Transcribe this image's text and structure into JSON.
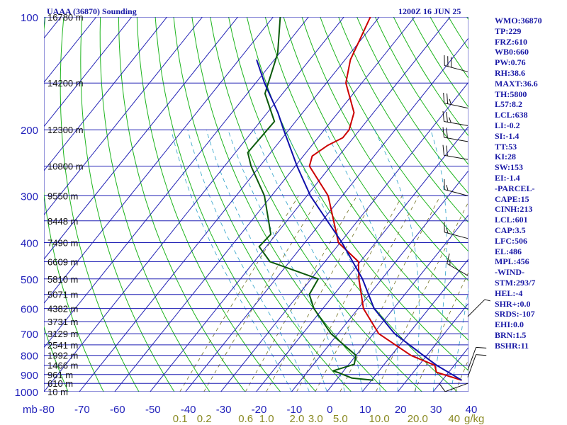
{
  "header": {
    "title": "UAAA (36870) Sounding",
    "datetime": "1200Z 16 JUN 25"
  },
  "stats": [
    "WMO:36870",
    "TP:229",
    "FRZ:610",
    "WB0:660",
    "PW:0.76",
    "RH:38.6",
    "MAXT:36.6",
    "TH:5800",
    "L57:8.2",
    "LCL:638",
    "LI:-0.2",
    "SI:-1.4",
    "TT:53",
    "KI:28",
    "SW:153",
    "EI:-1.4",
    "-PARCEL-",
    "CAPE:15",
    "CINH:213",
    "LCL:601",
    "CAP:3.5",
    "LFC:506",
    "EL:486",
    "MPL:456",
    "-WIND-",
    "STM:293/7",
    "HEL:-4",
    "SHR+:0.0",
    "SRDS:-107",
    "EHI:0.0",
    "BRN:1.5",
    "BSHR:11"
  ],
  "colors": {
    "isobar": "#1f1fb4",
    "isotherm": "#1f1fb4",
    "dry_adiabat": "#1db41d",
    "moist_adiabat": "#2aa0c8",
    "mixing_ratio": "#707020",
    "temperature": "#cc0000",
    "dewpoint": "#0b5a0b",
    "parcel": "#1010aa",
    "wind_barb": "#111111",
    "stats_text": "#1a1aa6"
  },
  "chart_data": {
    "type": "skew-t log-p",
    "title": "UAAA (36870) Sounding",
    "xlabel": "",
    "ylabel": "mb",
    "x_unit": "°C",
    "y_scale": "log",
    "xlim": [
      -80,
      40
    ],
    "ylim": [
      1000,
      100
    ],
    "pressure_levels": [
      100,
      200,
      300,
      400,
      500,
      600,
      700,
      800,
      900,
      1000
    ],
    "temperature_ticks": [
      -80,
      -70,
      -60,
      -50,
      -40,
      -30,
      -20,
      -10,
      0,
      10,
      20,
      30,
      40
    ],
    "isobar_levels": [
      100,
      150,
      200,
      250,
      300,
      350,
      400,
      450,
      500,
      550,
      600,
      650,
      700,
      750,
      800,
      850,
      900,
      950,
      1000
    ],
    "mixing_ratio_labels": [
      "0.1",
      "0.2",
      "0.6",
      "1.0",
      "2.0",
      "3.0",
      "5.0",
      "10.0",
      "20.0",
      "40"
    ],
    "mixing_ratio_unit": "g/kg",
    "mixing_ratio_values": [
      0.1,
      0.2,
      0.6,
      1.0,
      2.0,
      3.0,
      5.0,
      10.0,
      20.0,
      40.0
    ],
    "height_labels": [
      {
        "p": 100,
        "text": "16780 m"
      },
      {
        "p": 150,
        "text": "14200 m"
      },
      {
        "p": 200,
        "text": "12300 m"
      },
      {
        "p": 250,
        "text": "10800 m"
      },
      {
        "p": 300,
        "text": "9550 m"
      },
      {
        "p": 350,
        "text": "8448 m"
      },
      {
        "p": 400,
        "text": "7490 m"
      },
      {
        "p": 450,
        "text": "6609 m"
      },
      {
        "p": 500,
        "text": "5810 m"
      },
      {
        "p": 550,
        "text": "5071 m"
      },
      {
        "p": 600,
        "text": "4382 m"
      },
      {
        "p": 650,
        "text": "3731 m"
      },
      {
        "p": 700,
        "text": "3129 m"
      },
      {
        "p": 750,
        "text": "2541 m"
      },
      {
        "p": 800,
        "text": "1992 m"
      },
      {
        "p": 850,
        "text": "1466 m"
      },
      {
        "p": 900,
        "text": "961 m"
      },
      {
        "p": 950,
        "text": "610 m"
      },
      {
        "p": 1000,
        "text": "10 m"
      }
    ],
    "series": [
      {
        "name": "",
        "kind": "temperature",
        "points": [
          [
            932,
            35.5
          ],
          [
            887,
            26.5
          ],
          [
            850,
            24.5
          ],
          [
            800,
            15.5
          ],
          [
            700,
            1.5
          ],
          [
            600,
            -8.5
          ],
          [
            500,
            -16.5
          ],
          [
            450,
            -20.5
          ],
          [
            400,
            -30.5
          ],
          [
            300,
            -44.0
          ],
          [
            250,
            -56.0
          ],
          [
            235,
            -57.5
          ],
          [
            220,
            -55.5
          ],
          [
            210,
            -53.0
          ],
          [
            200,
            -53.0
          ],
          [
            180,
            -55.5
          ],
          [
            150,
            -64.5
          ],
          [
            130,
            -68.5
          ],
          [
            100,
            -72.5
          ]
        ]
      },
      {
        "name": "",
        "kind": "dewpoint",
        "points": [
          [
            932,
            10.5
          ],
          [
            920,
            4.0
          ],
          [
            890,
            -1.0
          ],
          [
            880,
            -3.0
          ],
          [
            845,
            1.5
          ],
          [
            800,
            0.0
          ],
          [
            700,
            -12.0
          ],
          [
            600,
            -22.5
          ],
          [
            550,
            -27.0
          ],
          [
            500,
            -28.0
          ],
          [
            450,
            -45.5
          ],
          [
            410,
            -52.0
          ],
          [
            380,
            -51.5
          ],
          [
            300,
            -62.0
          ],
          [
            250,
            -72.5
          ],
          [
            230,
            -76.5
          ],
          [
            190,
            -76.0
          ],
          [
            160,
            -85.0
          ],
          [
            125,
            -90.5
          ],
          [
            100,
            -98.0
          ]
        ]
      },
      {
        "name": "",
        "kind": "parcel",
        "points": [
          [
            932,
            35.5
          ],
          [
            850,
            25.0
          ],
          [
            800,
            19.0
          ],
          [
            700,
            6.0
          ],
          [
            600,
            -5.5
          ],
          [
            500,
            -15.5
          ],
          [
            400,
            -29.5
          ],
          [
            300,
            -49.0
          ],
          [
            250,
            -59.5
          ],
          [
            200,
            -71.5
          ],
          [
            180,
            -77.0
          ],
          [
            150,
            -87.5
          ],
          [
            130,
            -95.0
          ]
        ]
      }
    ],
    "wind_barbs": [
      {
        "p": 140,
        "dir": 285,
        "speed_kt": 30
      },
      {
        "p": 175,
        "dir": 282,
        "speed_kt": 25
      },
      {
        "p": 195,
        "dir": 280,
        "speed_kt": 25
      },
      {
        "p": 215,
        "dir": 280,
        "speed_kt": 20
      },
      {
        "p": 240,
        "dir": 280,
        "speed_kt": 20
      },
      {
        "p": 300,
        "dir": 285,
        "speed_kt": 15
      },
      {
        "p": 390,
        "dir": 285,
        "speed_kt": 15
      },
      {
        "p": 490,
        "dir": 300,
        "speed_kt": 15
      },
      {
        "p": 630,
        "dir": 45,
        "speed_kt": 5
      },
      {
        "p": 875,
        "dir": 20,
        "speed_kt": 10
      },
      {
        "p": 915,
        "dir": 20,
        "speed_kt": 10
      },
      {
        "p": 950,
        "dir": 250,
        "speed_kt": 10
      }
    ],
    "grid": true,
    "legend": "none"
  }
}
